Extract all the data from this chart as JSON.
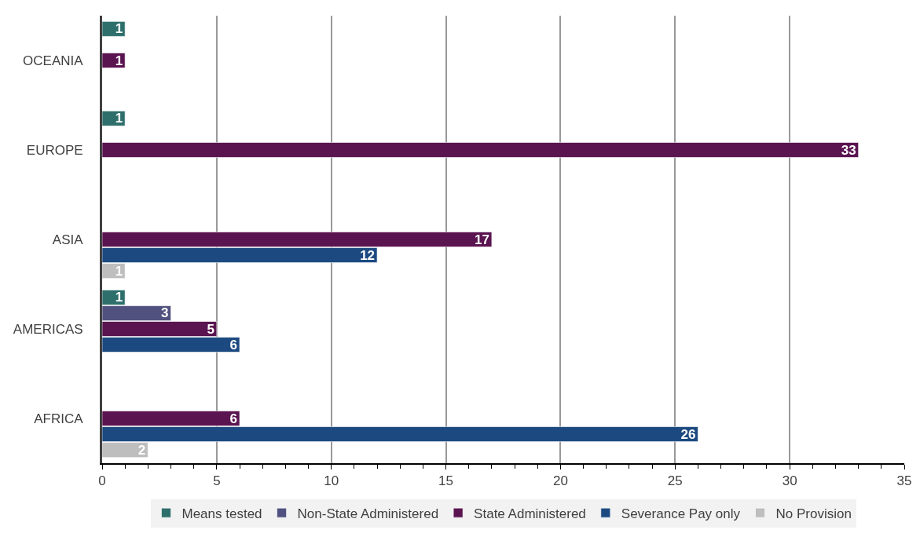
{
  "chart_data": {
    "type": "bar",
    "orientation": "horizontal",
    "categories": [
      "OCEANIA",
      "EUROPE",
      "ASIA",
      "AMERICAS",
      "AFRICA"
    ],
    "series": [
      {
        "name": "Means tested",
        "color": "#2e6f6b",
        "values": [
          1,
          1,
          null,
          1,
          null
        ]
      },
      {
        "name": "Non-State Administered",
        "color": "#51517f",
        "values": [
          null,
          null,
          null,
          3,
          null
        ]
      },
      {
        "name": "State Administered",
        "color": "#5a1450",
        "values": [
          1,
          33,
          17,
          5,
          6
        ]
      },
      {
        "name": "Severance Pay only",
        "color": "#1c4a80",
        "values": [
          null,
          null,
          12,
          6,
          26
        ]
      },
      {
        "name": "No Provision",
        "color": "#bebebe",
        "values": [
          null,
          null,
          1,
          null,
          2
        ]
      }
    ],
    "xlim": [
      0,
      35
    ],
    "xticks": [
      0,
      5,
      10,
      15,
      20,
      25,
      30,
      35
    ],
    "grid": "x",
    "legend": "bottom",
    "data_labels": true
  }
}
